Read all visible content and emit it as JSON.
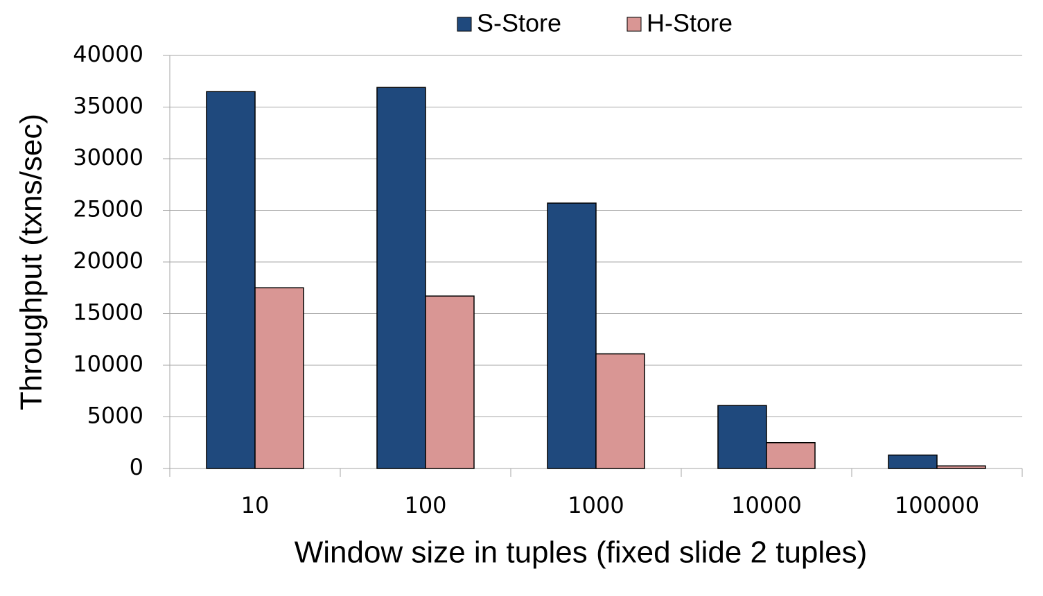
{
  "chart_data": {
    "type": "bar",
    "categories": [
      "10",
      "100",
      "1000",
      "10000",
      "100000"
    ],
    "series": [
      {
        "name": "S-Store",
        "color": "#1f497d",
        "values": [
          36500,
          36900,
          25700,
          6100,
          1300
        ]
      },
      {
        "name": "H-Store",
        "color": "#d99694",
        "values": [
          17500,
          16700,
          11100,
          2500,
          250
        ]
      }
    ],
    "x_label": "Window size in tuples (fixed slide 2 tuples)",
    "y_label": "Throughput (txns/sec)",
    "ylim": [
      0,
      40000
    ],
    "yticks": [
      0,
      5000,
      10000,
      15000,
      20000,
      25000,
      30000,
      35000,
      40000
    ],
    "grid": true,
    "legend": "top"
  }
}
